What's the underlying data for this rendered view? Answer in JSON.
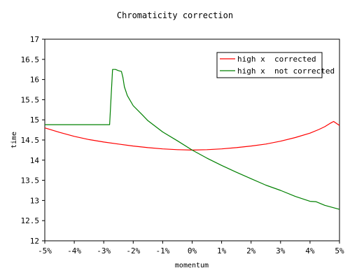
{
  "chart_data": {
    "type": "line",
    "title": "Chromaticity correction",
    "xlabel": "momentum",
    "ylabel": "time",
    "xlim": [
      -5,
      5
    ],
    "ylim": [
      12,
      17
    ],
    "x_ticks": [
      "-5%",
      "-4%",
      "-3%",
      "-2%",
      "-1%",
      "0%",
      "1%",
      "2%",
      "3%",
      "4%",
      "5%"
    ],
    "y_ticks": [
      "12",
      "12.5",
      "13",
      "13.5",
      "14",
      "14.5",
      "15",
      "15.5",
      "16",
      "16.5",
      "17"
    ],
    "grid": false,
    "legend_position": "top-right",
    "series": [
      {
        "name": "high x  corrected",
        "color": "#ff0000",
        "x": [
          -5,
          -4.5,
          -4,
          -3.5,
          -3,
          -2.5,
          -2,
          -1.5,
          -1,
          -0.5,
          0,
          0.5,
          1,
          1.5,
          2,
          2.5,
          3,
          3.5,
          4,
          4.3,
          4.5,
          4.7,
          4.8,
          5
        ],
        "y": [
          14.8,
          14.69,
          14.59,
          14.51,
          14.45,
          14.4,
          14.35,
          14.31,
          14.28,
          14.26,
          14.25,
          14.26,
          14.28,
          14.31,
          14.35,
          14.4,
          14.47,
          14.56,
          14.67,
          14.76,
          14.83,
          14.92,
          14.96,
          14.86
        ]
      },
      {
        "name": "high x  not corrected",
        "color": "#008000",
        "x": [
          -5,
          -4,
          -3,
          -2.8,
          -2.7,
          -2.6,
          -2.5,
          -2.4,
          -2.35,
          -2.3,
          -2.2,
          -2.0,
          -1.7,
          -1.5,
          -1.0,
          -0.5,
          0,
          0.5,
          1,
          1.5,
          2,
          2.5,
          3,
          3.5,
          4,
          4.2,
          4.5,
          5
        ],
        "y": [
          14.88,
          14.88,
          14.88,
          14.88,
          16.25,
          16.25,
          16.22,
          16.2,
          16.05,
          15.82,
          15.6,
          15.35,
          15.13,
          14.98,
          14.7,
          14.48,
          14.25,
          14.05,
          13.87,
          13.7,
          13.54,
          13.38,
          13.25,
          13.1,
          12.98,
          12.97,
          12.88,
          12.78
        ]
      }
    ]
  }
}
